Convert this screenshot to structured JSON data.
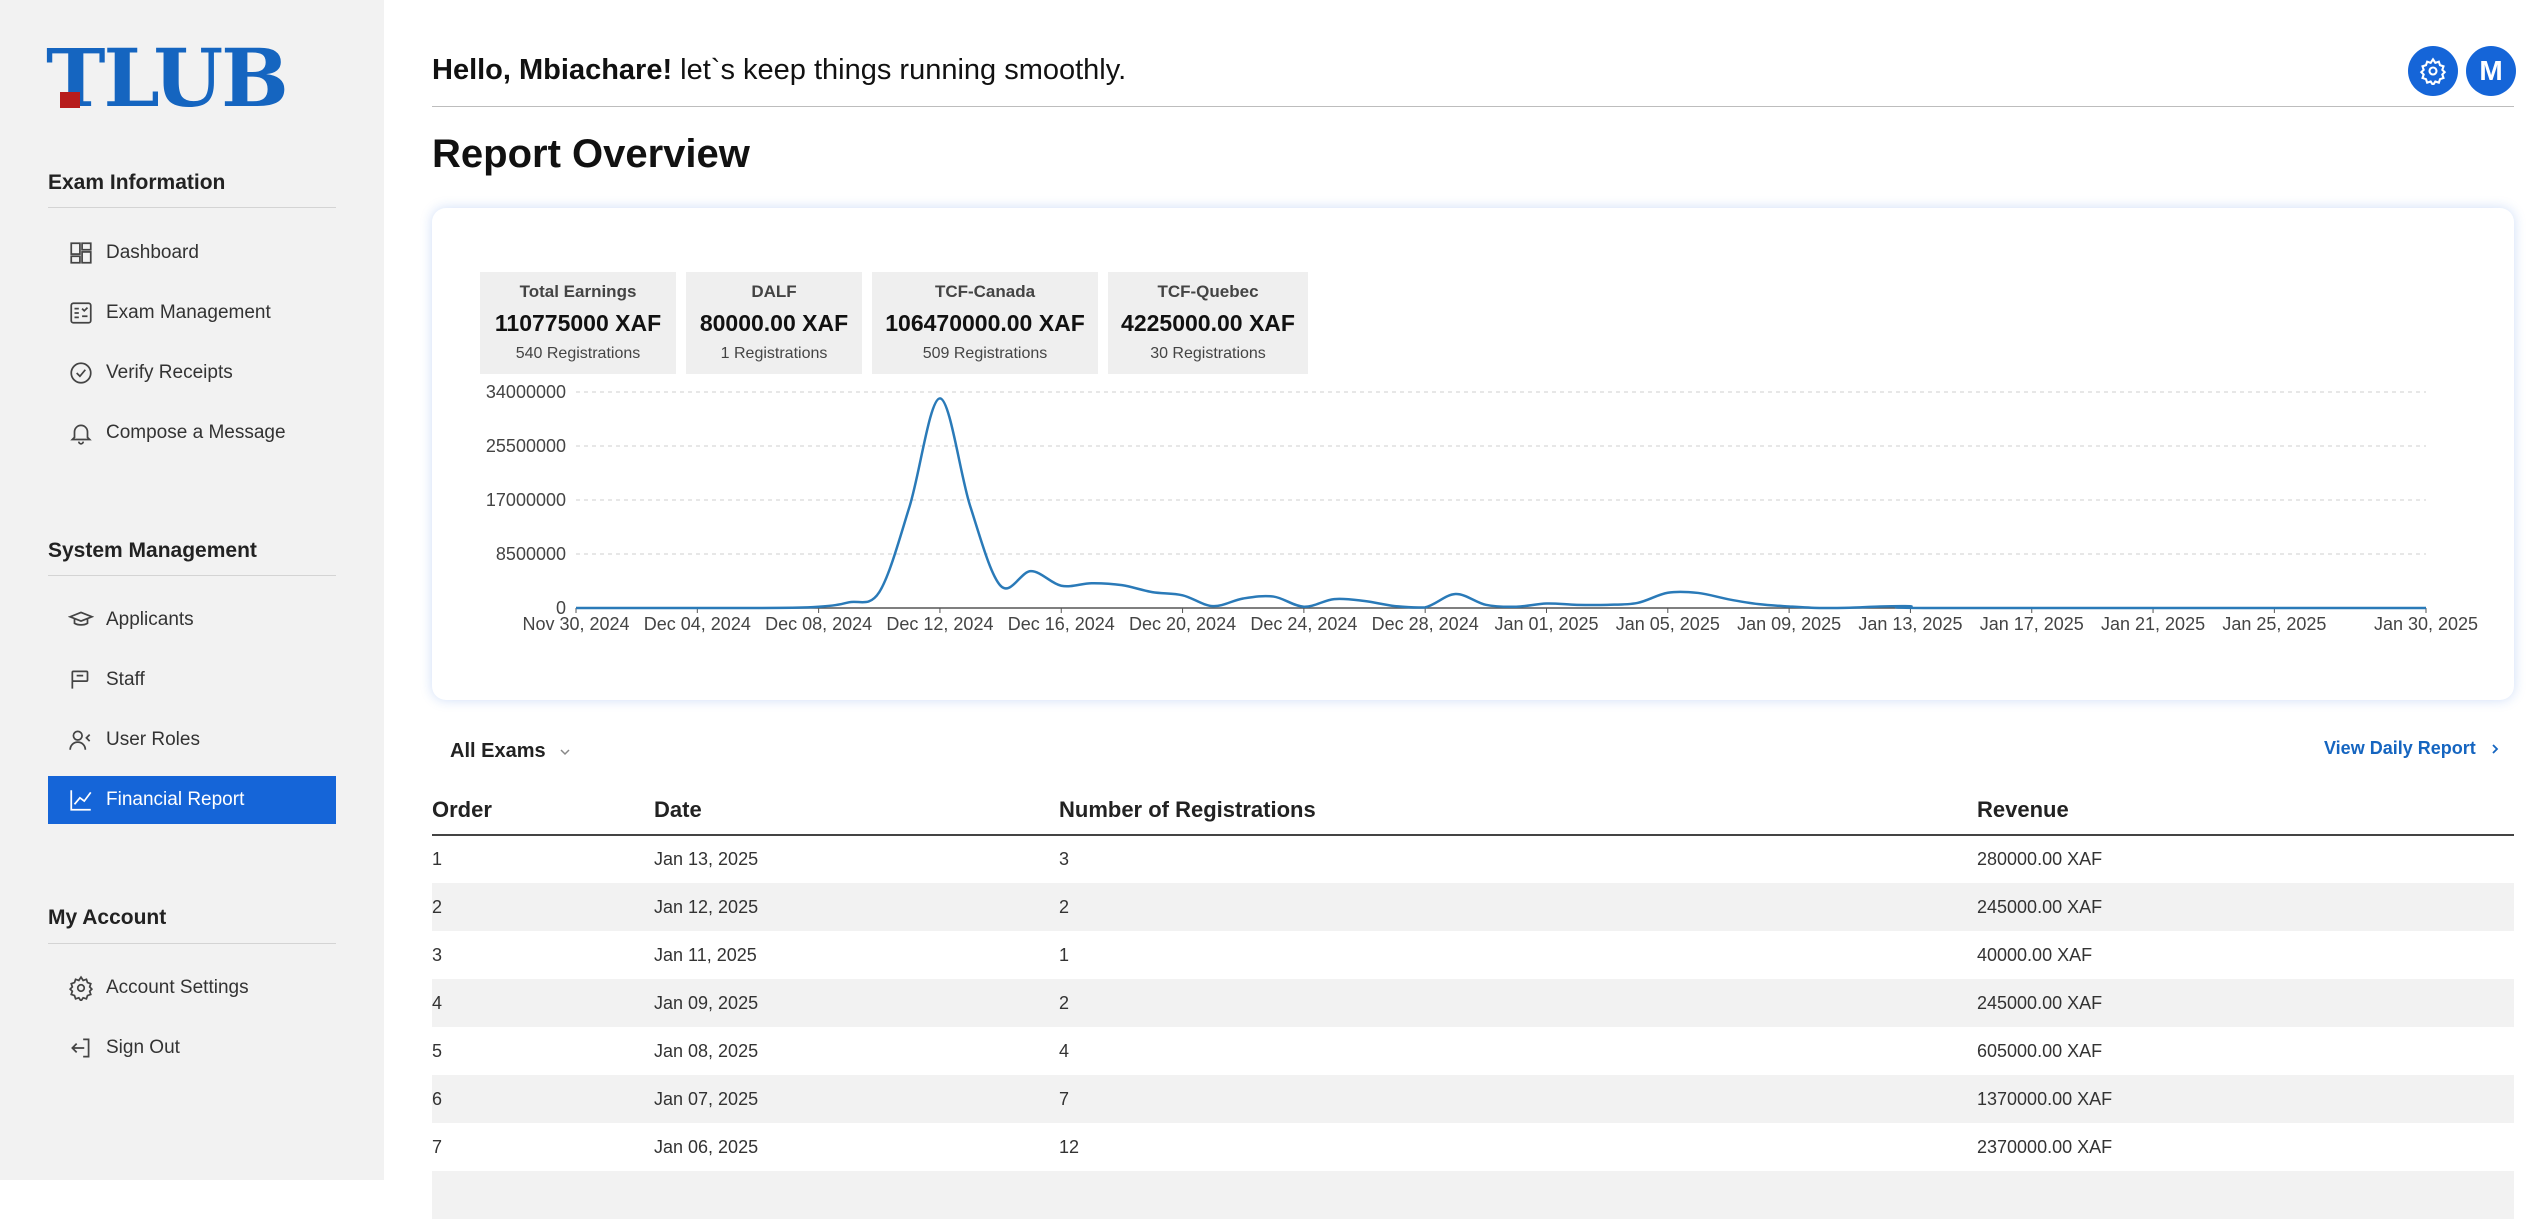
{
  "app": {
    "logo_text": "TLUB",
    "brand_color": "#1565c0",
    "logo_accent": "#b71c1c"
  },
  "sidebar": {
    "sections": [
      {
        "title": "Exam Information",
        "items": [
          {
            "label": "Dashboard",
            "icon": "dashboard-icon"
          },
          {
            "label": "Exam Management",
            "icon": "exam-icon"
          },
          {
            "label": "Verify Receipts",
            "icon": "check-circle-icon"
          },
          {
            "label": "Compose a Message",
            "icon": "bell-icon"
          }
        ]
      },
      {
        "title": "System Management",
        "items": [
          {
            "label": "Applicants",
            "icon": "graduation-cap-icon"
          },
          {
            "label": "Staff",
            "icon": "staff-icon"
          },
          {
            "label": "User Roles",
            "icon": "user-roles-icon"
          },
          {
            "label": "Financial Report",
            "icon": "chart-line-icon",
            "active": true
          }
        ]
      },
      {
        "title": "My Account",
        "items": [
          {
            "label": "Account Settings",
            "icon": "gear-icon"
          },
          {
            "label": "Sign Out",
            "icon": "sign-out-icon"
          }
        ]
      }
    ]
  },
  "header": {
    "greeting_name": "Hello, Mbiachare!",
    "greeting_rest": " let`s keep things running smoothly.",
    "avatar_initial": "M",
    "accent_color": "#1565d8"
  },
  "main": {
    "title": "Report Overview",
    "stats": [
      {
        "label": "Total Earnings",
        "value": "110775000 XAF",
        "sub": "540 Registrations"
      },
      {
        "label": "DALF",
        "value": "80000.00 XAF",
        "sub": "1 Registrations"
      },
      {
        "label": "TCF-Canada",
        "value": "106470000.00 XAF",
        "sub": "509 Registrations"
      },
      {
        "label": "TCF-Quebec",
        "value": "4225000.00 XAF",
        "sub": "30 Registrations"
      }
    ],
    "filter_label": "All Exams",
    "daily_link": "View Daily Report",
    "table": {
      "headers": [
        "Order",
        "Date",
        "Number of Registrations",
        "Revenue"
      ],
      "rows": [
        [
          "1",
          "Jan 13, 2025",
          "3",
          "280000.00 XAF"
        ],
        [
          "2",
          "Jan 12, 2025",
          "2",
          "245000.00 XAF"
        ],
        [
          "3",
          "Jan 11, 2025",
          "1",
          "40000.00 XAF"
        ],
        [
          "4",
          "Jan 09, 2025",
          "2",
          "245000.00 XAF"
        ],
        [
          "5",
          "Jan 08, 2025",
          "4",
          "605000.00 XAF"
        ],
        [
          "6",
          "Jan 07, 2025",
          "7",
          "1370000.00 XAF"
        ],
        [
          "7",
          "Jan 06, 2025",
          "12",
          "2370000.00 XAF"
        ]
      ]
    }
  },
  "chart_data": {
    "type": "line",
    "title": "",
    "xlabel": "",
    "ylabel": "",
    "x_start": "Nov 30, 2024",
    "x_end": "Jan 30, 2025",
    "x_ticks": [
      "Nov 30, 2024",
      "Dec 04, 2024",
      "Dec 08, 2024",
      "Dec 12, 2024",
      "Dec 16, 2024",
      "Dec 20, 2024",
      "Dec 24, 2024",
      "Dec 28, 2024",
      "Jan 01, 2025",
      "Jan 05, 2025",
      "Jan 09, 2025",
      "Jan 13, 2025",
      "Jan 17, 2025",
      "Jan 21, 2025",
      "Jan 25, 2025",
      "Jan 30, 2025"
    ],
    "y_ticks": [
      "0",
      "8500000",
      "17000000",
      "25500000",
      "34000000"
    ],
    "ylim": [
      0,
      34000000
    ],
    "grid": true,
    "line_color": "#2a7ab8",
    "series": [
      {
        "points": [
          [
            "Nov 30, 2024",
            0
          ],
          [
            "Dec 06, 2024",
            0
          ],
          [
            "Dec 08, 2024",
            200000
          ],
          [
            "Dec 09, 2024",
            900000
          ],
          [
            "Dec 10, 2024",
            2500000
          ],
          [
            "Dec 11, 2024",
            16000000
          ],
          [
            "Dec 12, 2024",
            33000000
          ],
          [
            "Dec 13, 2024",
            16000000
          ],
          [
            "Dec 14, 2024",
            3500000
          ],
          [
            "Dec 15, 2024",
            5800000
          ],
          [
            "Dec 16, 2024",
            3500000
          ],
          [
            "Dec 17, 2024",
            3900000
          ],
          [
            "Dec 18, 2024",
            3600000
          ],
          [
            "Dec 19, 2024",
            2500000
          ],
          [
            "Dec 20, 2024",
            2000000
          ],
          [
            "Dec 21, 2024",
            300000
          ],
          [
            "Dec 22, 2024",
            1500000
          ],
          [
            "Dec 23, 2024",
            1800000
          ],
          [
            "Dec 24, 2024",
            200000
          ],
          [
            "Dec 25, 2024",
            1400000
          ],
          [
            "Dec 26, 2024",
            1100000
          ],
          [
            "Dec 27, 2024",
            300000
          ],
          [
            "Dec 28, 2024",
            100000
          ],
          [
            "Dec 29, 2024",
            2200000
          ],
          [
            "Dec 30, 2024",
            500000
          ],
          [
            "Dec 31, 2024",
            200000
          ],
          [
            "Jan 01, 2025",
            700000
          ],
          [
            "Jan 02, 2025",
            500000
          ],
          [
            "Jan 03, 2025",
            500000
          ],
          [
            "Jan 04, 2025",
            800000
          ],
          [
            "Jan 05, 2025",
            2400000
          ],
          [
            "Jan 06, 2025",
            2370000
          ],
          [
            "Jan 07, 2025",
            1370000
          ],
          [
            "Jan 08, 2025",
            605000
          ],
          [
            "Jan 09, 2025",
            245000
          ],
          [
            "Jan 10, 2025",
            0
          ],
          [
            "Jan 11, 2025",
            40000
          ],
          [
            "Jan 12, 2025",
            245000
          ],
          [
            "Jan 13, 2025",
            280000
          ],
          [
            "Jan 14, 2025",
            0
          ],
          [
            "Jan 30, 2025",
            0
          ]
        ]
      }
    ]
  }
}
